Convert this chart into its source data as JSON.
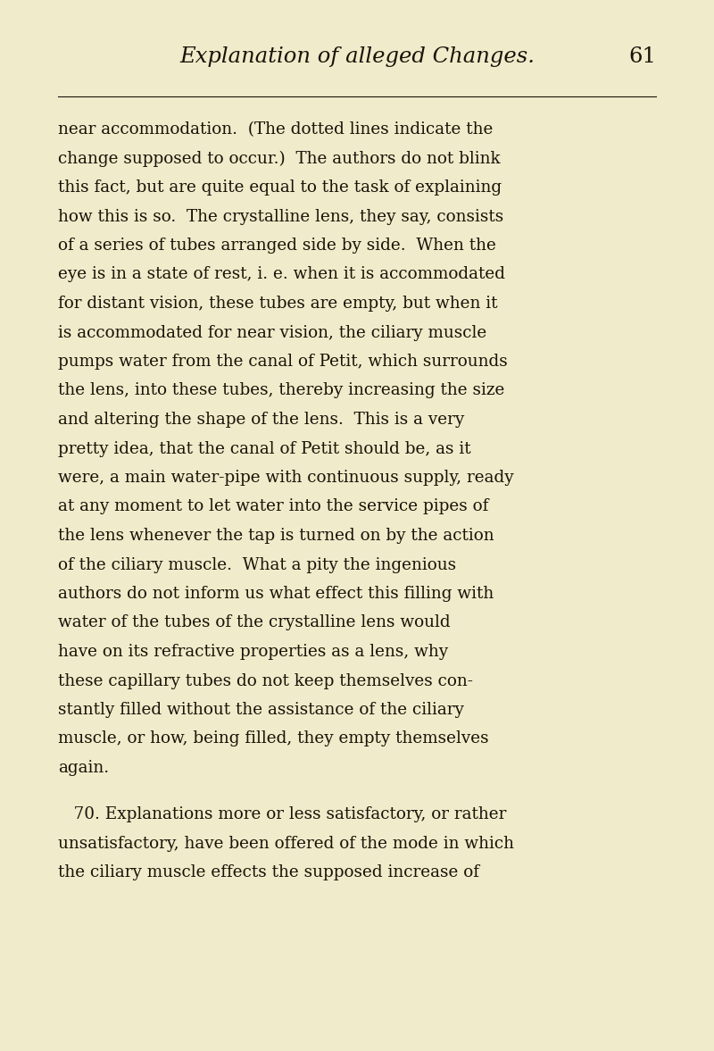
{
  "background_color": "#f0ebca",
  "header_text": "Explanation of alleged Changes.",
  "page_number": "61",
  "header_fontsize": 17.5,
  "body_fontsize": 13.2,
  "text_color": "#1a1208",
  "lines": [
    {
      "text": "near accommodation.  (The dotted lines indicate the",
      "indent": false
    },
    {
      "text": "change supposed to occur.)  The authors do not blink",
      "indent": false
    },
    {
      "text": "this fact, but are quite equal to the task of explaining",
      "indent": false
    },
    {
      "text": "how this is so.  The crystalline lens, they say, consists",
      "indent": false
    },
    {
      "text": "of a series of tubes arranged side by side.  When the",
      "indent": false
    },
    {
      "text": "eye is in a state of rest, i. e. when it is accommodated",
      "indent": false
    },
    {
      "text": "for distant vision, these tubes are empty, but when it",
      "indent": false
    },
    {
      "text": "is accommodated for near vision, the ciliary muscle",
      "indent": false
    },
    {
      "text": "pumps water from the canal of Petit, which surrounds",
      "indent": false
    },
    {
      "text": "the lens, into these tubes, thereby increasing the size",
      "indent": false
    },
    {
      "text": "and altering the shape of the lens.  This is a very",
      "indent": false
    },
    {
      "text": "pretty idea, that the canal of Petit should be, as it",
      "indent": false
    },
    {
      "text": "were, a main water-pipe with continuous supply, ready",
      "indent": false
    },
    {
      "text": "at any moment to let water into the service pipes of",
      "indent": false
    },
    {
      "text": "the lens whenever the tap is turned on by the action",
      "indent": false
    },
    {
      "text": "of the ciliary muscle.  What a pity the ingenious",
      "indent": false
    },
    {
      "text": "authors do not inform us what effect this filling with",
      "indent": false
    },
    {
      "text": "water of the tubes of the crystalline lens would",
      "indent": false
    },
    {
      "text": "have on its refractive properties as a lens, why",
      "indent": false
    },
    {
      "text": "these capillary tubes do not keep themselves con-",
      "indent": false
    },
    {
      "text": "stantly filled without the assistance of the ciliary",
      "indent": false
    },
    {
      "text": "muscle, or how, being filled, they empty themselves",
      "indent": false
    },
    {
      "text": "again.",
      "indent": false
    },
    {
      "text": "",
      "indent": false
    },
    {
      "text": "   70. Explanations more or less satisfactory, or rather",
      "indent": true
    },
    {
      "text": "unsatisfactory, have been offered of the mode in which",
      "indent": false
    },
    {
      "text": "the ciliary muscle effects the supposed increase of",
      "indent": false
    }
  ]
}
